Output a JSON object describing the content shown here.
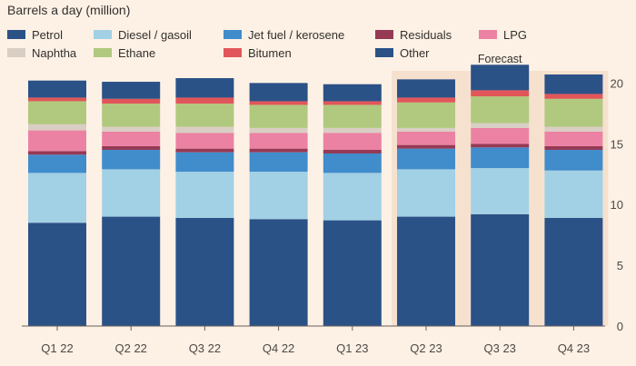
{
  "chart_data": {
    "type": "bar",
    "stacked": true,
    "title": "Barrels a day (million)",
    "forecast_label": "Forecast",
    "forecast_categories": [
      "Q2 23",
      "Q3 23",
      "Q4 23"
    ],
    "categories": [
      "Q1 22",
      "Q2 22",
      "Q3 22",
      "Q4 22",
      "Q1 23",
      "Q2 23",
      "Q3 23",
      "Q4 23"
    ],
    "ylim": [
      0,
      21
    ],
    "yticks": [
      0,
      5,
      10,
      15,
      20
    ],
    "grid": false,
    "y_axis_position": "right",
    "legend_position": "top",
    "series": [
      {
        "name": "Petrol",
        "color": "#2b5287",
        "values": [
          8.5,
          9.0,
          8.9,
          8.8,
          8.7,
          9.0,
          9.2,
          8.9
        ]
      },
      {
        "name": "Diesel / gasoil",
        "color": "#a2d0e5",
        "values": [
          4.1,
          3.9,
          3.8,
          3.9,
          3.9,
          3.9,
          3.8,
          3.9
        ]
      },
      {
        "name": "Jet fuel / kerosene",
        "color": "#418ccb",
        "values": [
          1.5,
          1.6,
          1.6,
          1.6,
          1.6,
          1.7,
          1.7,
          1.7
        ]
      },
      {
        "name": "Residuals",
        "color": "#963955",
        "values": [
          0.3,
          0.3,
          0.3,
          0.3,
          0.3,
          0.3,
          0.3,
          0.3
        ]
      },
      {
        "name": "LPG",
        "color": "#eb82a3",
        "values": [
          1.7,
          1.2,
          1.3,
          1.3,
          1.4,
          1.1,
          1.3,
          1.2
        ]
      },
      {
        "name": "Naphtha",
        "color": "#d9cec4",
        "values": [
          0.5,
          0.4,
          0.5,
          0.4,
          0.4,
          0.3,
          0.4,
          0.4
        ]
      },
      {
        "name": "Ethane",
        "color": "#b0c97e",
        "values": [
          1.9,
          1.9,
          1.9,
          1.9,
          1.9,
          2.1,
          2.2,
          2.3
        ]
      },
      {
        "name": "Bitumen",
        "color": "#e1565a",
        "values": [
          0.3,
          0.4,
          0.5,
          0.3,
          0.3,
          0.4,
          0.5,
          0.4
        ]
      },
      {
        "name": "Other",
        "color": "#2b5287",
        "values": [
          1.4,
          1.4,
          1.6,
          1.5,
          1.4,
          1.5,
          2.1,
          1.6
        ]
      }
    ]
  }
}
